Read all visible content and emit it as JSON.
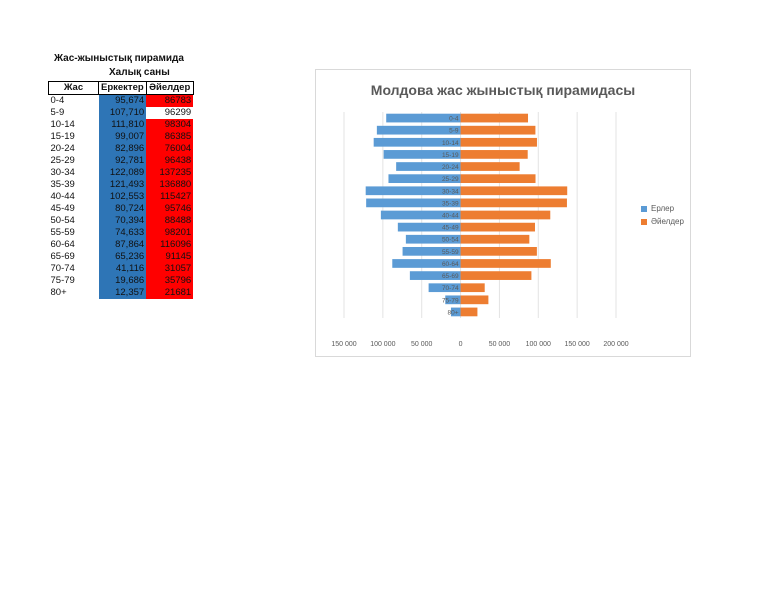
{
  "table": {
    "title": "Жас-жыныстық пирамида",
    "subtitle": "Халық саны",
    "headers": {
      "age": "Жас",
      "men": "Еркектер",
      "women": "Әйелдер"
    },
    "rows": [
      {
        "age": "0-4",
        "men": "95,674",
        "women": "86783"
      },
      {
        "age": "5-9",
        "men": "107,710",
        "women": "96299"
      },
      {
        "age": "10-14",
        "men": "111,810",
        "women": "98304"
      },
      {
        "age": "15-19",
        "men": "99,007",
        "women": "86385"
      },
      {
        "age": "20-24",
        "men": "82,896",
        "women": "76004"
      },
      {
        "age": "25-29",
        "men": "92,781",
        "women": "96438"
      },
      {
        "age": "30-34",
        "men": "122,089",
        "women": "137235"
      },
      {
        "age": "35-39",
        "men": "121,493",
        "women": "136880"
      },
      {
        "age": "40-44",
        "men": "102,553",
        "women": "115427"
      },
      {
        "age": "45-49",
        "men": "80,724",
        "women": "95746"
      },
      {
        "age": "50-54",
        "men": "70,394",
        "women": "88488"
      },
      {
        "age": "55-59",
        "men": "74,633",
        "women": "98201"
      },
      {
        "age": "60-64",
        "men": "87,864",
        "women": "116096"
      },
      {
        "age": "65-69",
        "men": "65,236",
        "women": "91145"
      },
      {
        "age": "70-74",
        "men": "41,116",
        "women": "31057"
      },
      {
        "age": "75-79",
        "men": "19,686",
        "women": "35796"
      },
      {
        "age": "80+",
        "men": "12,357",
        "women": "21681"
      }
    ]
  },
  "chart_data": {
    "type": "bar",
    "orientation": "horizontal-pyramid",
    "title": "Молдова жас жыныстық пирамидасы",
    "categories": [
      "0-4",
      "5-9",
      "10-14",
      "15-19",
      "20-24",
      "25-29",
      "30-34",
      "35-39",
      "40-44",
      "45-49",
      "50-54",
      "55-59",
      "60-64",
      "65-69",
      "70-74",
      "75-79",
      "80+"
    ],
    "series": [
      {
        "name": "Ерлер",
        "color": "#5b9bd5",
        "values": [
          95674,
          107710,
          111810,
          99007,
          82896,
          92781,
          122089,
          121493,
          102553,
          80724,
          70394,
          74633,
          87864,
          65236,
          41116,
          19686,
          12357
        ]
      },
      {
        "name": "Әйелдер",
        "color": "#ed7d31",
        "values": [
          86783,
          96299,
          98304,
          86385,
          76004,
          96438,
          137235,
          136880,
          115427,
          95746,
          88488,
          98201,
          116096,
          91145,
          31057,
          35796,
          21681
        ]
      }
    ],
    "xlim": [
      -150000,
      200000
    ],
    "xticks": [
      -150000,
      -100000,
      -50000,
      0,
      50000,
      100000,
      150000,
      200000
    ],
    "xtick_labels": [
      "150 000",
      "100 000",
      "50 000",
      "0",
      "50 000",
      "100 000",
      "150 000",
      "200 000"
    ],
    "legend": "right",
    "grid": true
  }
}
